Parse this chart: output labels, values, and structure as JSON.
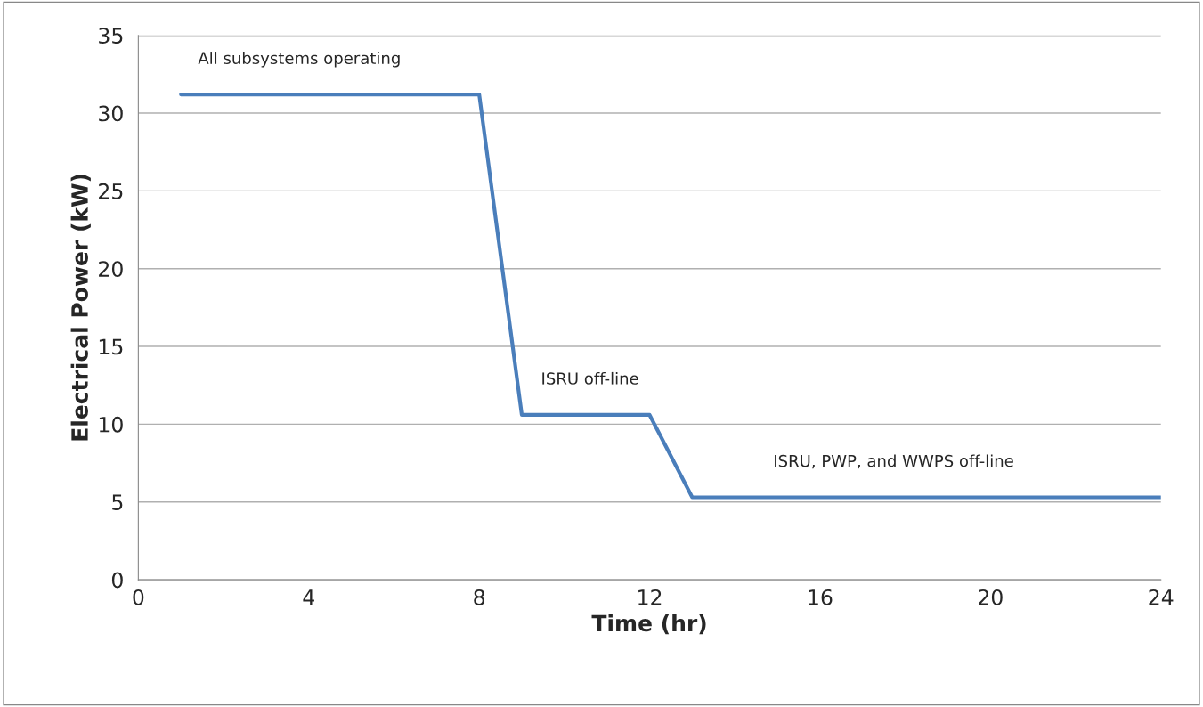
{
  "chart_data": {
    "type": "line",
    "xlabel": "Time (hr)",
    "ylabel": "Electrical Power (kW)",
    "x": [
      1,
      8,
      9,
      12,
      13,
      24
    ],
    "series": [
      {
        "color": "#4a7ebb",
        "values": [
          31.2,
          31.2,
          10.6,
          10.6,
          5.3,
          5.3
        ]
      }
    ],
    "xlim": [
      0,
      24
    ],
    "xticks": [
      0,
      4,
      8,
      12,
      16,
      20,
      24
    ],
    "ylim": [
      0,
      35
    ],
    "yticks": [
      0,
      5,
      10,
      15,
      20,
      25,
      30,
      35
    ],
    "grid": "y",
    "legend": false,
    "marker": "none",
    "line_style": "solid",
    "annotations": [
      {
        "text": "All subsystems operating",
        "x": 1.4,
        "y": 31.2
      },
      {
        "text": "ISRU off-line",
        "x": 9.45,
        "y": 10.6
      },
      {
        "text": "ISRU, PWP, and WWPS off-line",
        "x": 14.9,
        "y": 5.3
      }
    ]
  }
}
